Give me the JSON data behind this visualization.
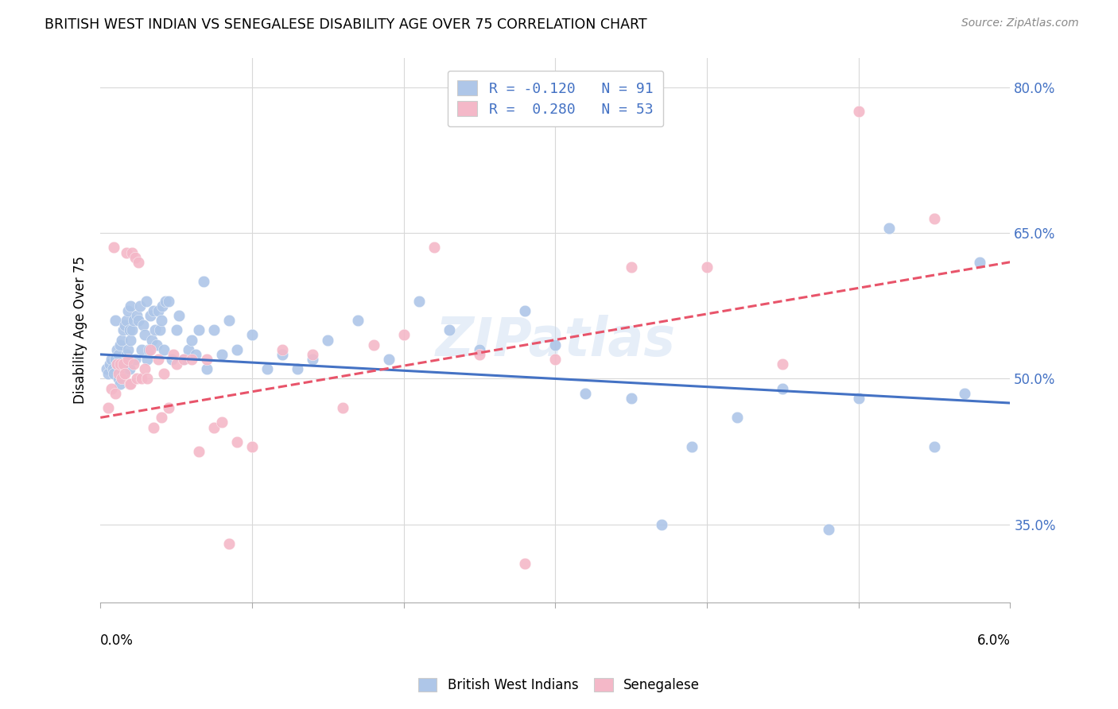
{
  "title": "BRITISH WEST INDIAN VS SENEGALESE DISABILITY AGE OVER 75 CORRELATION CHART",
  "source": "Source: ZipAtlas.com",
  "ylabel": "Disability Age Over 75",
  "ylabel_tick_vals": [
    35.0,
    50.0,
    65.0,
    80.0
  ],
  "xmin": 0.0,
  "xmax": 6.0,
  "ymin": 27.0,
  "ymax": 83.0,
  "watermark": "ZIPatlas",
  "legend_bwi_label": "R = -0.120   N = 91",
  "legend_sen_label": "R =  0.280   N = 53",
  "bottom_legend_bwi": "British West Indians",
  "bottom_legend_sen": "Senegalese",
  "bwi_color": "#aec6e8",
  "sen_color": "#f4b8c8",
  "bwi_line_color": "#4472c4",
  "sen_line_color": "#e8546a",
  "bwi_line_x0": 0.0,
  "bwi_line_x1": 6.0,
  "bwi_line_y0": 52.5,
  "bwi_line_y1": 47.5,
  "sen_line_x0": 0.0,
  "sen_line_x1": 6.0,
  "sen_line_y0": 46.0,
  "sen_line_y1": 62.0,
  "bwi_x": [
    0.04,
    0.05,
    0.06,
    0.07,
    0.08,
    0.09,
    0.1,
    0.1,
    0.11,
    0.11,
    0.12,
    0.12,
    0.13,
    0.13,
    0.14,
    0.14,
    0.15,
    0.15,
    0.16,
    0.16,
    0.17,
    0.17,
    0.18,
    0.18,
    0.19,
    0.19,
    0.2,
    0.2,
    0.21,
    0.22,
    0.23,
    0.24,
    0.25,
    0.26,
    0.27,
    0.28,
    0.29,
    0.3,
    0.31,
    0.32,
    0.33,
    0.34,
    0.35,
    0.36,
    0.37,
    0.38,
    0.39,
    0.4,
    0.41,
    0.42,
    0.43,
    0.45,
    0.47,
    0.5,
    0.52,
    0.55,
    0.58,
    0.6,
    0.63,
    0.65,
    0.7,
    0.75,
    0.8,
    0.85,
    0.9,
    1.0,
    1.1,
    1.2,
    1.3,
    1.5,
    1.7,
    1.9,
    2.1,
    2.5,
    2.8,
    3.2,
    3.5,
    3.9,
    4.2,
    4.8,
    5.0,
    5.2,
    5.5,
    5.7,
    5.8,
    3.0,
    1.4,
    2.3,
    3.7,
    4.5,
    0.68
  ],
  "bwi_y": [
    51.0,
    50.5,
    51.5,
    52.0,
    51.0,
    50.5,
    52.0,
    56.0,
    51.5,
    53.0,
    50.0,
    52.5,
    49.5,
    53.5,
    50.5,
    54.0,
    50.5,
    55.0,
    51.0,
    55.5,
    52.5,
    56.0,
    53.0,
    57.0,
    51.0,
    55.0,
    54.0,
    57.5,
    55.0,
    56.0,
    52.0,
    56.5,
    56.0,
    57.5,
    53.0,
    55.5,
    54.5,
    58.0,
    52.0,
    53.0,
    56.5,
    54.0,
    57.0,
    55.0,
    53.5,
    57.0,
    55.0,
    56.0,
    57.5,
    53.0,
    58.0,
    58.0,
    52.0,
    55.0,
    56.5,
    52.0,
    53.0,
    54.0,
    52.5,
    55.0,
    51.0,
    55.0,
    52.5,
    56.0,
    53.0,
    54.5,
    51.0,
    52.5,
    51.0,
    54.0,
    56.0,
    52.0,
    58.0,
    53.0,
    57.0,
    48.5,
    48.0,
    43.0,
    46.0,
    34.5,
    48.0,
    65.5,
    43.0,
    48.5,
    62.0,
    53.5,
    52.0,
    55.0,
    35.0,
    49.0,
    60.0
  ],
  "sen_x": [
    0.05,
    0.07,
    0.09,
    0.1,
    0.11,
    0.12,
    0.13,
    0.14,
    0.15,
    0.16,
    0.17,
    0.18,
    0.19,
    0.2,
    0.21,
    0.22,
    0.23,
    0.24,
    0.25,
    0.27,
    0.29,
    0.31,
    0.33,
    0.35,
    0.38,
    0.4,
    0.42,
    0.45,
    0.48,
    0.5,
    0.55,
    0.6,
    0.65,
    0.7,
    0.75,
    0.8,
    0.85,
    0.9,
    1.0,
    1.2,
    1.4,
    1.6,
    1.8,
    2.0,
    2.2,
    2.5,
    2.8,
    3.0,
    3.5,
    4.0,
    4.5,
    5.0,
    5.5
  ],
  "sen_y": [
    47.0,
    49.0,
    63.5,
    48.5,
    51.5,
    50.5,
    51.5,
    50.0,
    51.5,
    50.5,
    63.0,
    52.0,
    49.5,
    49.5,
    63.0,
    51.5,
    62.5,
    50.0,
    62.0,
    50.0,
    51.0,
    50.0,
    53.0,
    45.0,
    52.0,
    46.0,
    50.5,
    47.0,
    52.5,
    51.5,
    52.0,
    52.0,
    42.5,
    52.0,
    45.0,
    45.5,
    33.0,
    43.5,
    43.0,
    53.0,
    52.5,
    47.0,
    53.5,
    54.5,
    63.5,
    52.5,
    31.0,
    52.0,
    61.5,
    61.5,
    51.5,
    77.5,
    66.5
  ]
}
